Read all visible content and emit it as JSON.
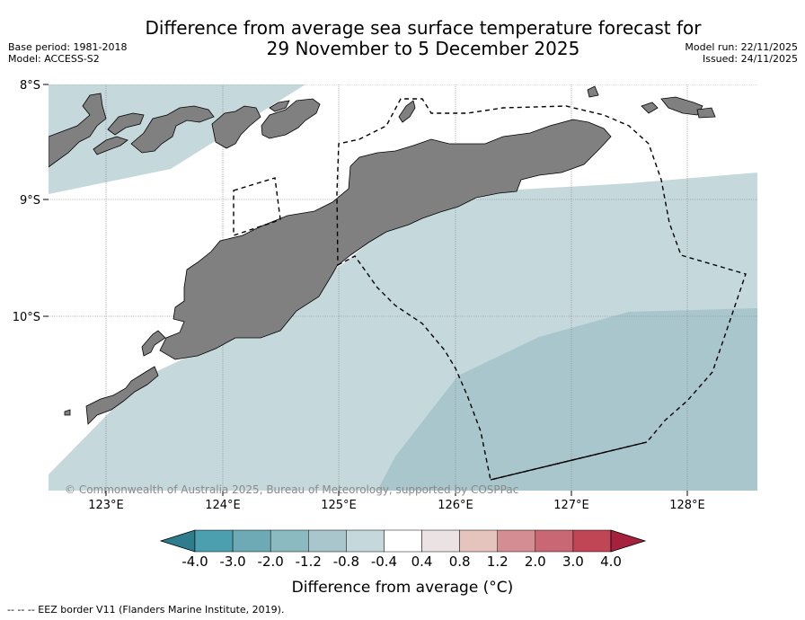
{
  "header": {
    "title_line1": "Difference from average sea surface temperature forecast for",
    "title_line2": "29 November to 5 December 2025",
    "base_period": "Base period: 1981-2018",
    "model": "Model: ACCESS-S2",
    "model_run": "Model run: 22/11/2025",
    "issued": "Issued: 24/11/2025"
  },
  "map": {
    "lat_labels": [
      "8°S",
      "9°S",
      "10°S"
    ],
    "lon_labels": [
      "123°E",
      "124°E",
      "125°E",
      "126°E",
      "127°E",
      "128°E"
    ],
    "copyright": "© Commonwealth of Australia 2025, Bureau of Meteorology, supported by COSPPac",
    "colors": {
      "land": "#808080",
      "anomaly_neg_0_8": "#c5d9dd",
      "anomaly_neg_1_2": "#a8c6cb",
      "neutral": "#ffffff"
    }
  },
  "colorbar": {
    "ticks": [
      "-4.0",
      "-3.0",
      "-2.0",
      "-1.2",
      "-0.8",
      "-0.4",
      "0.4",
      "0.8",
      "1.2",
      "2.0",
      "3.0",
      "4.0"
    ],
    "colors": [
      "#2f7c8d",
      "#4b9fae",
      "#6eaab6",
      "#8cbac1",
      "#a8c6cb",
      "#c5d9dd",
      "#ffffff",
      "#ebe3e3",
      "#e5c4bd",
      "#d48e93",
      "#c96874",
      "#c04555",
      "#a6213d"
    ],
    "label": "Difference from average (°C)"
  },
  "footer": {
    "legend_text": "--  --  -- EEZ border V11 (Flanders Marine Institute, 2019)."
  }
}
